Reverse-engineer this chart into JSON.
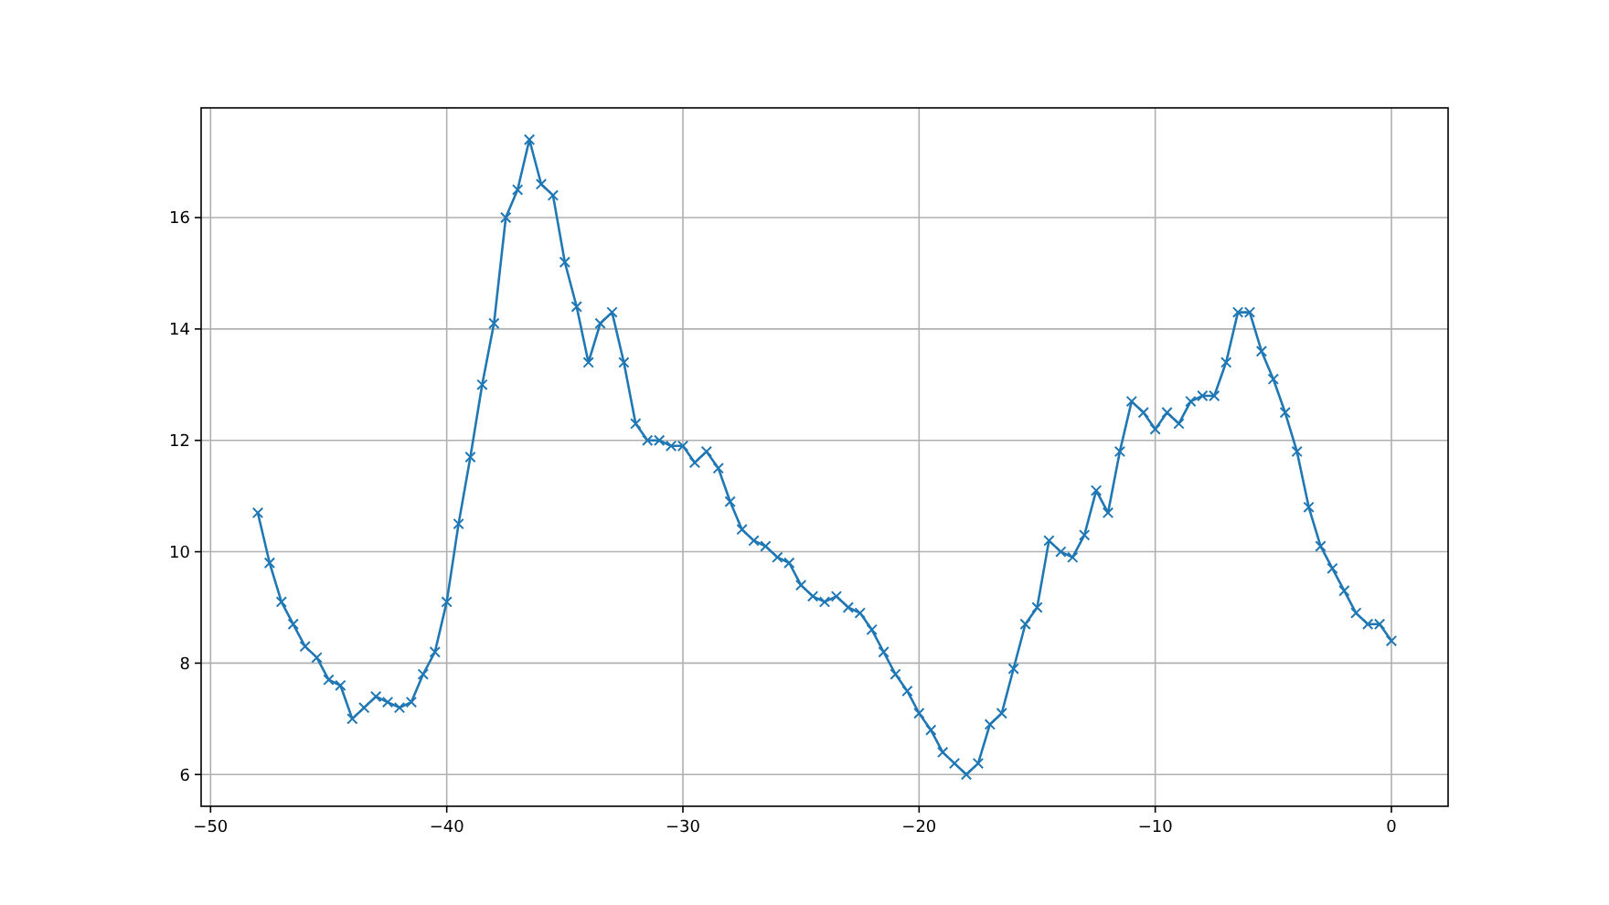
{
  "chart_data": {
    "type": "line",
    "x": [
      -48,
      -47.5,
      -47,
      -46.5,
      -46,
      -45.5,
      -45,
      -44.5,
      -44,
      -43.5,
      -43,
      -42.5,
      -42,
      -41.5,
      -41,
      -40.5,
      -40,
      -39.5,
      -39,
      -38.5,
      -38,
      -37.5,
      -37,
      -36.5,
      -36,
      -35.5,
      -35,
      -34.5,
      -34,
      -33.5,
      -33,
      -32.5,
      -32,
      -31.5,
      -31,
      -30.5,
      -30,
      -29.5,
      -29,
      -28.5,
      -28,
      -27.5,
      -27,
      -26.5,
      -26,
      -25.5,
      -25,
      -24.5,
      -24,
      -23.5,
      -23,
      -22.5,
      -22,
      -21.5,
      -21,
      -20.5,
      -20,
      -19.5,
      -19,
      -18.5,
      -18,
      -17.5,
      -17,
      -16.5,
      -16,
      -15.5,
      -15,
      -14.5,
      -14,
      -13.5,
      -13,
      -12.5,
      -12,
      -11.5,
      -11,
      -10.5,
      -10,
      -9.5,
      -9,
      -8.5,
      -8,
      -7.5,
      -7,
      -6.5,
      -6,
      -5.5,
      -5,
      -4.5,
      -4,
      -3.5,
      -3,
      -2.5,
      -2,
      -1.5,
      -1,
      -0.5,
      0
    ],
    "series": [
      {
        "color": "#1f77b4",
        "values": [
          10.7,
          9.8,
          9.1,
          8.7,
          8.3,
          8.1,
          7.7,
          7.6,
          7.0,
          7.2,
          7.4,
          7.3,
          7.2,
          7.3,
          7.8,
          8.2,
          9.1,
          10.5,
          11.7,
          13.0,
          14.1,
          16.0,
          16.5,
          17.4,
          16.6,
          16.4,
          15.2,
          14.4,
          13.4,
          14.1,
          14.3,
          13.4,
          12.3,
          12.0,
          12.0,
          11.9,
          11.9,
          11.6,
          11.8,
          11.5,
          10.9,
          10.4,
          10.2,
          10.1,
          9.9,
          9.8,
          9.4,
          9.2,
          9.1,
          9.2,
          9.0,
          8.9,
          8.6,
          8.2,
          7.8,
          7.5,
          7.1,
          6.8,
          6.4,
          6.2,
          6.0,
          6.2,
          6.9,
          7.1,
          7.9,
          8.7,
          9.0,
          10.2,
          10.0,
          9.9,
          10.3,
          11.1,
          10.7,
          11.8,
          12.7,
          12.5,
          12.2,
          12.5,
          12.3,
          12.7,
          12.8,
          12.8,
          13.4,
          14.3,
          14.3,
          13.6,
          13.1,
          12.5,
          11.8,
          10.8,
          10.1,
          9.7,
          9.3,
          8.9,
          8.7,
          8.7,
          8.4
        ]
      }
    ],
    "xlim": [
      -50.4,
      2.4
    ],
    "ylim": [
      5.43,
      17.97
    ],
    "xticks": [
      {
        "value": -50,
        "label": "−50"
      },
      {
        "value": -40,
        "label": "−40"
      },
      {
        "value": -30,
        "label": "−30"
      },
      {
        "value": -20,
        "label": "−20"
      },
      {
        "value": -10,
        "label": "−10"
      },
      0
    ],
    "yticks": [
      6,
      8,
      10,
      12,
      14,
      16
    ],
    "grid": true,
    "marker": "cross",
    "line_style": "solid"
  }
}
